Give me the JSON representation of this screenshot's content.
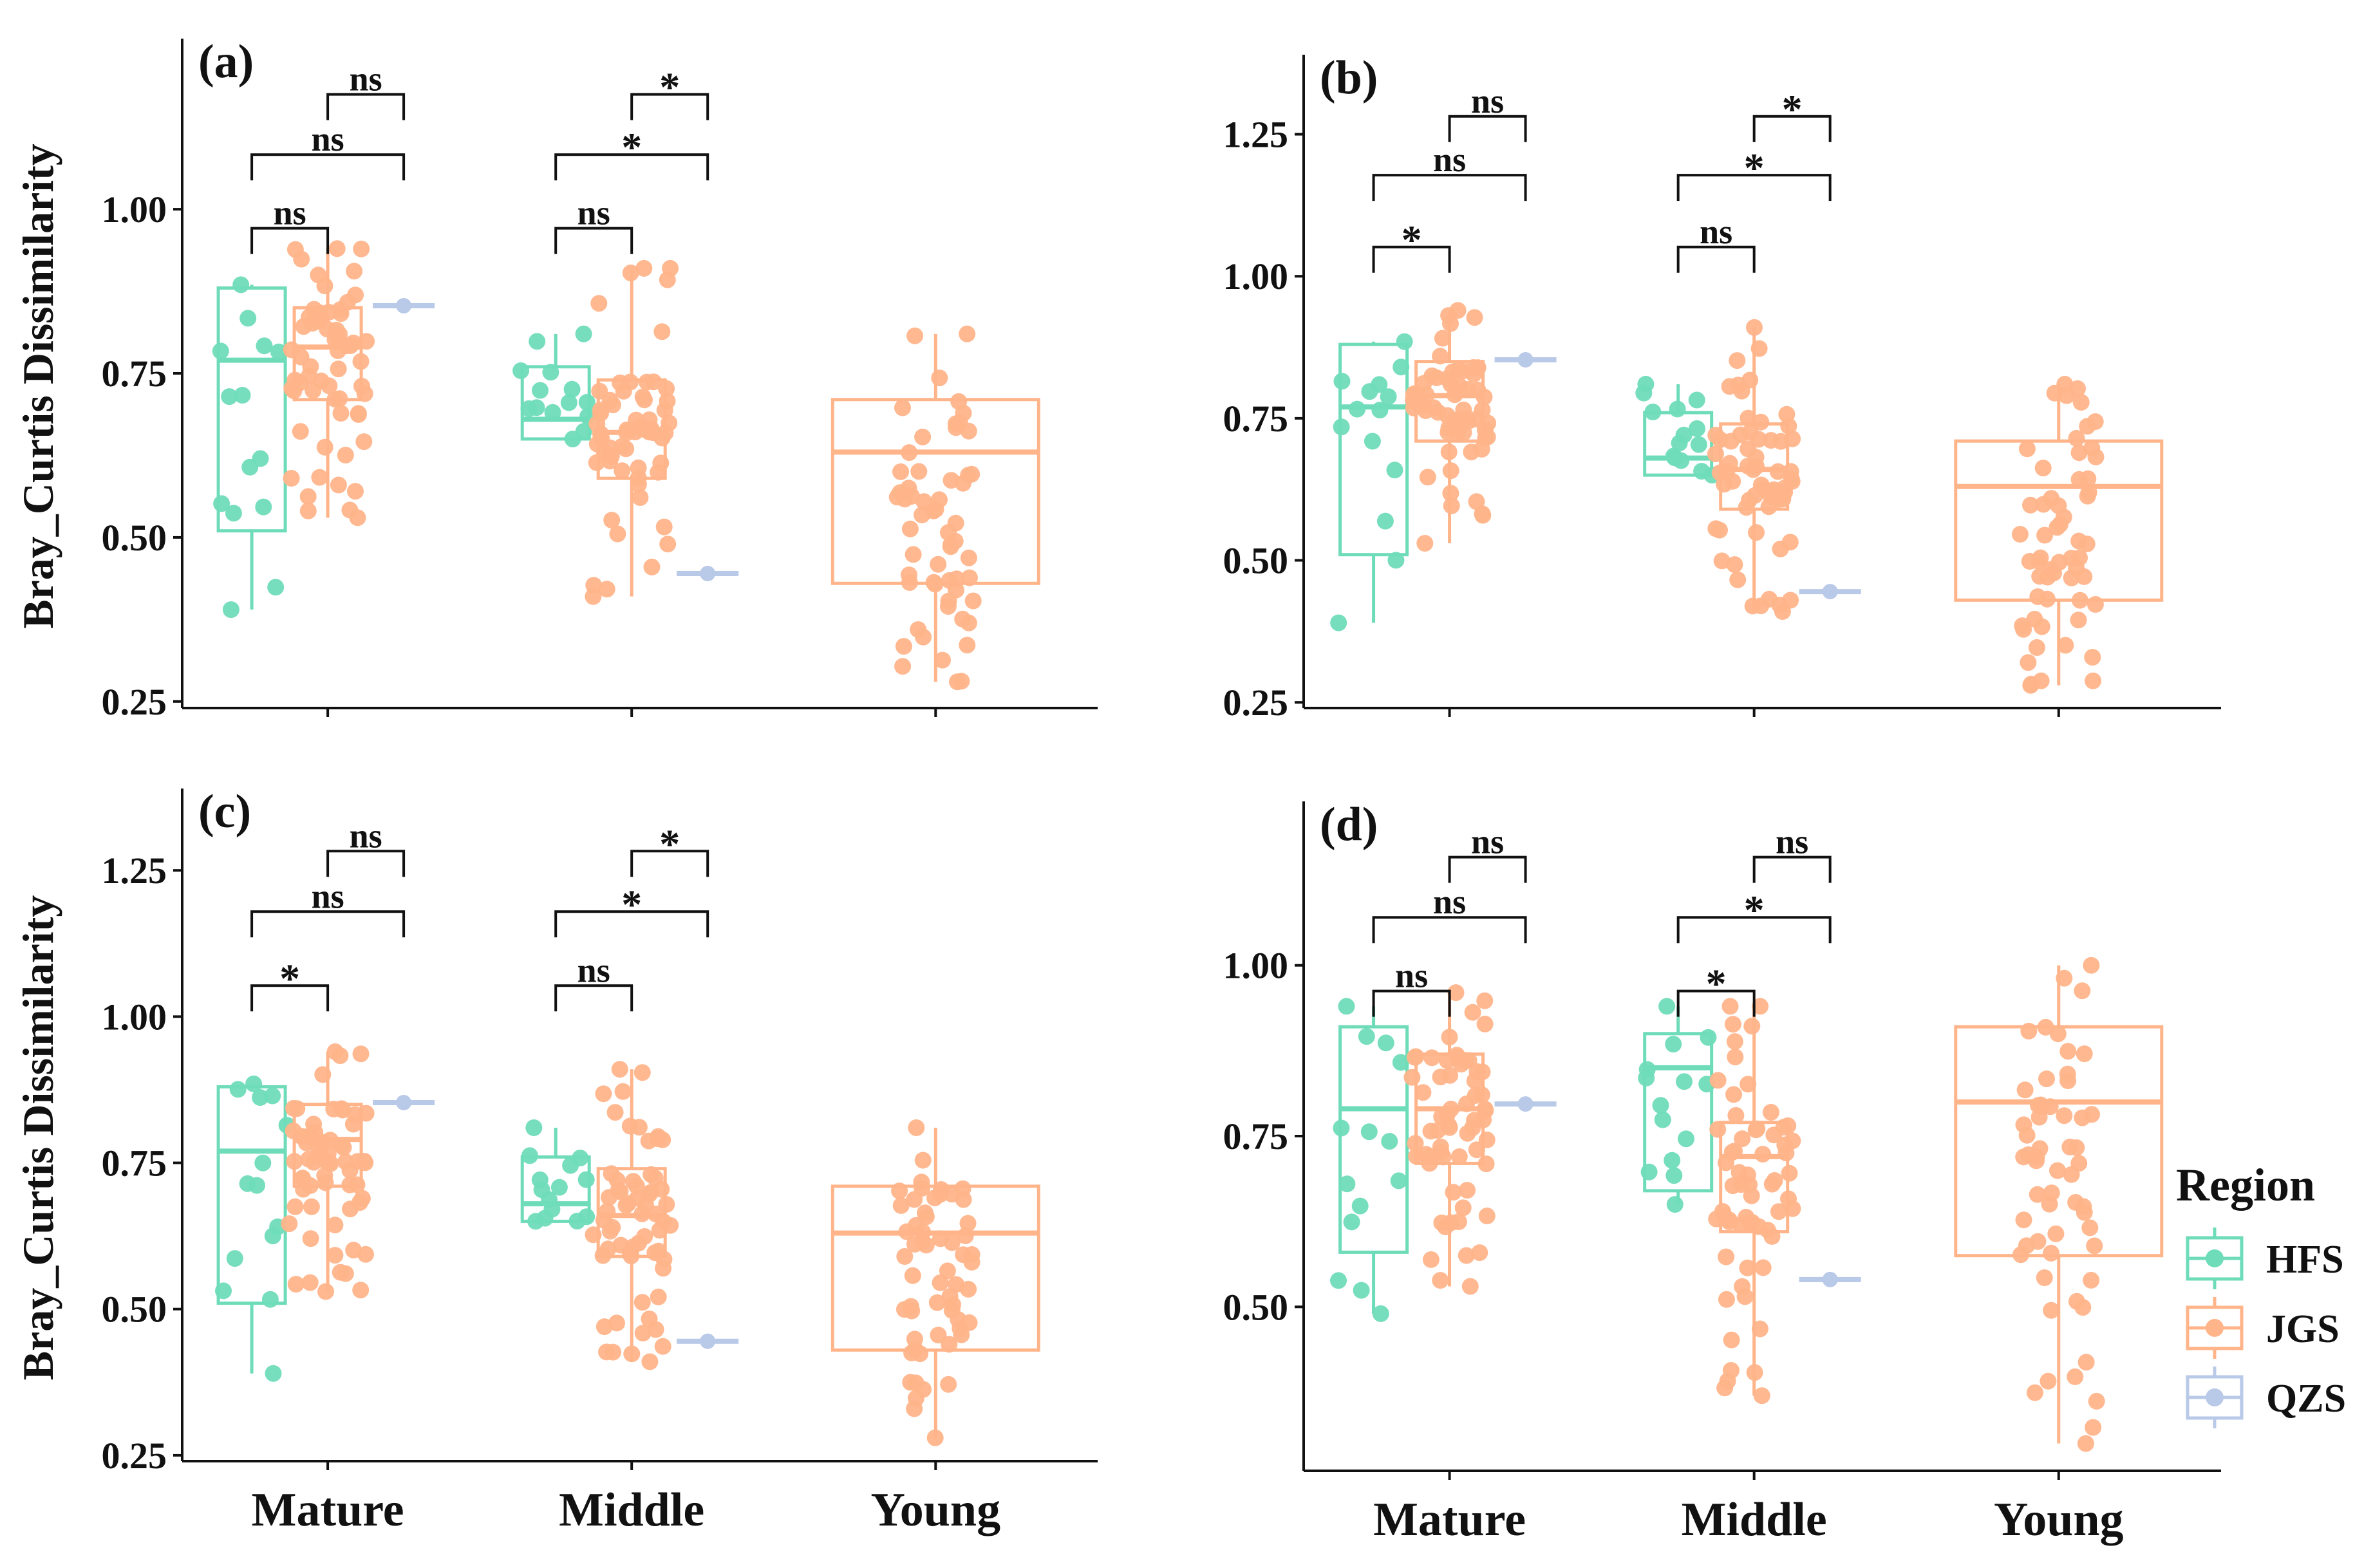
{
  "colors": {
    "HFS": "#6fdcb9",
    "JGS": "#ffb48a",
    "QZS": "#b9c9e8"
  },
  "legend": {
    "title": "Region",
    "items": [
      "HFS",
      "JGS",
      "QZS"
    ]
  },
  "y_axis_label": "Bray_Curtis Dissimilarity",
  "chart_data": [
    {
      "type": "box",
      "panel": "(a)",
      "ylabel": "Bray_Curtis Dissimilarity",
      "ylim": [
        0.24,
        1.26
      ],
      "yticks": [
        0.25,
        0.5,
        0.75,
        1.0
      ],
      "ytick_labels": [
        "0.25",
        "0.50",
        "0.75",
        "1.00"
      ],
      "categories": [],
      "series": [
        {
          "group": "Mature",
          "region": "HFS",
          "q1": 0.51,
          "median": 0.77,
          "q3": 0.88,
          "lower": 0.39,
          "upper": 0.885
        },
        {
          "group": "Mature",
          "region": "JGS",
          "q1": 0.71,
          "median": 0.79,
          "q3": 0.85,
          "lower": 0.53,
          "upper": 0.94
        },
        {
          "group": "Mature",
          "region": "QZS",
          "q1": 0.853,
          "median": 0.853,
          "q3": 0.853,
          "lower": 0.853,
          "upper": 0.853
        },
        {
          "group": "Middle",
          "region": "HFS",
          "q1": 0.65,
          "median": 0.68,
          "q3": 0.76,
          "lower": 0.65,
          "upper": 0.81
        },
        {
          "group": "Middle",
          "region": "JGS",
          "q1": 0.59,
          "median": 0.66,
          "q3": 0.74,
          "lower": 0.41,
          "upper": 0.91
        },
        {
          "group": "Middle",
          "region": "QZS",
          "q1": 0.445,
          "median": 0.445,
          "q3": 0.445,
          "lower": 0.445,
          "upper": 0.445
        },
        {
          "group": "Young",
          "region": "JGS",
          "q1": 0.43,
          "median": 0.63,
          "q3": 0.71,
          "lower": 0.28,
          "upper": 0.81
        }
      ],
      "significance": [
        {
          "group": "Mature",
          "pair": [
            "JGS",
            "QZS"
          ],
          "label": "ns"
        },
        {
          "group": "Mature",
          "pair": [
            "HFS",
            "QZS"
          ],
          "label": "ns"
        },
        {
          "group": "Mature",
          "pair": [
            "HFS",
            "JGS"
          ],
          "label": "ns"
        },
        {
          "group": "Middle",
          "pair": [
            "JGS",
            "QZS"
          ],
          "label": "*"
        },
        {
          "group": "Middle",
          "pair": [
            "HFS",
            "QZS"
          ],
          "label": "*"
        },
        {
          "group": "Middle",
          "pair": [
            "HFS",
            "JGS"
          ],
          "label": "ns"
        }
      ]
    },
    {
      "type": "box",
      "panel": "(b)",
      "ylabel": "",
      "ylim": [
        0.24,
        1.39
      ],
      "yticks": [
        0.25,
        0.5,
        0.75,
        1.0,
        1.25
      ],
      "ytick_labels": [
        "0.25",
        "0.50",
        "0.75",
        "1.00",
        "1.25"
      ],
      "categories": [],
      "series": [
        {
          "group": "Mature",
          "region": "HFS",
          "q1": 0.51,
          "median": 0.77,
          "q3": 0.88,
          "lower": 0.39,
          "upper": 0.885
        },
        {
          "group": "Mature",
          "region": "JGS",
          "q1": 0.71,
          "median": 0.79,
          "q3": 0.85,
          "lower": 0.53,
          "upper": 0.94
        },
        {
          "group": "Mature",
          "region": "QZS",
          "q1": 0.853,
          "median": 0.853,
          "q3": 0.853,
          "lower": 0.853,
          "upper": 0.853
        },
        {
          "group": "Middle",
          "region": "HFS",
          "q1": 0.65,
          "median": 0.68,
          "q3": 0.76,
          "lower": 0.65,
          "upper": 0.81
        },
        {
          "group": "Middle",
          "region": "JGS",
          "q1": 0.59,
          "median": 0.66,
          "q3": 0.74,
          "lower": 0.41,
          "upper": 0.91
        },
        {
          "group": "Middle",
          "region": "QZS",
          "q1": 0.445,
          "median": 0.445,
          "q3": 0.445,
          "lower": 0.445,
          "upper": 0.445
        },
        {
          "group": "Young",
          "region": "JGS",
          "q1": 0.43,
          "median": 0.63,
          "q3": 0.71,
          "lower": 0.28,
          "upper": 0.81
        }
      ],
      "significance": [
        {
          "group": "Mature",
          "pair": [
            "JGS",
            "QZS"
          ],
          "label": "ns"
        },
        {
          "group": "Mature",
          "pair": [
            "HFS",
            "QZS"
          ],
          "label": "ns"
        },
        {
          "group": "Mature",
          "pair": [
            "HFS",
            "JGS"
          ],
          "label": "*"
        },
        {
          "group": "Middle",
          "pair": [
            "JGS",
            "QZS"
          ],
          "label": "*"
        },
        {
          "group": "Middle",
          "pair": [
            "HFS",
            "QZS"
          ],
          "label": "*"
        },
        {
          "group": "Middle",
          "pair": [
            "HFS",
            "JGS"
          ],
          "label": "ns"
        }
      ]
    },
    {
      "type": "box",
      "panel": "(c)",
      "ylabel": "Bray_Curtis Dissimilarity",
      "ylim": [
        0.24,
        1.39
      ],
      "yticks": [
        0.25,
        0.5,
        0.75,
        1.0,
        1.25
      ],
      "ytick_labels": [
        "0.25",
        "0.50",
        "0.75",
        "1.00",
        "1.25"
      ],
      "categories": [
        "Mature",
        "Middle",
        "Young"
      ],
      "series": [
        {
          "group": "Mature",
          "region": "HFS",
          "q1": 0.51,
          "median": 0.77,
          "q3": 0.88,
          "lower": 0.39,
          "upper": 0.885
        },
        {
          "group": "Mature",
          "region": "JGS",
          "q1": 0.71,
          "median": 0.79,
          "q3": 0.85,
          "lower": 0.53,
          "upper": 0.94
        },
        {
          "group": "Mature",
          "region": "QZS",
          "q1": 0.853,
          "median": 0.853,
          "q3": 0.853,
          "lower": 0.853,
          "upper": 0.853
        },
        {
          "group": "Middle",
          "region": "HFS",
          "q1": 0.65,
          "median": 0.68,
          "q3": 0.76,
          "lower": 0.65,
          "upper": 0.81
        },
        {
          "group": "Middle",
          "region": "JGS",
          "q1": 0.59,
          "median": 0.66,
          "q3": 0.74,
          "lower": 0.41,
          "upper": 0.91
        },
        {
          "group": "Middle",
          "region": "QZS",
          "q1": 0.445,
          "median": 0.445,
          "q3": 0.445,
          "lower": 0.445,
          "upper": 0.445
        },
        {
          "group": "Young",
          "region": "JGS",
          "q1": 0.43,
          "median": 0.63,
          "q3": 0.71,
          "lower": 0.28,
          "upper": 0.81
        }
      ],
      "significance": [
        {
          "group": "Mature",
          "pair": [
            "JGS",
            "QZS"
          ],
          "label": "ns"
        },
        {
          "group": "Mature",
          "pair": [
            "HFS",
            "QZS"
          ],
          "label": "ns"
        },
        {
          "group": "Mature",
          "pair": [
            "HFS",
            "JGS"
          ],
          "label": "*"
        },
        {
          "group": "Middle",
          "pair": [
            "JGS",
            "QZS"
          ],
          "label": "*"
        },
        {
          "group": "Middle",
          "pair": [
            "HFS",
            "QZS"
          ],
          "label": "*"
        },
        {
          "group": "Middle",
          "pair": [
            "HFS",
            "JGS"
          ],
          "label": "ns"
        }
      ]
    },
    {
      "type": "box",
      "panel": "(d)",
      "ylabel": "",
      "ylim": [
        0.26,
        1.24
      ],
      "yticks": [
        0.5,
        0.75,
        1.0
      ],
      "ytick_labels": [
        "0.50",
        "0.75",
        "1.00"
      ],
      "categories": [
        "Mature",
        "Middle",
        "Young"
      ],
      "series": [
        {
          "group": "Mature",
          "region": "HFS",
          "q1": 0.58,
          "median": 0.79,
          "q3": 0.91,
          "lower": 0.49,
          "upper": 0.94
        },
        {
          "group": "Mature",
          "region": "JGS",
          "q1": 0.71,
          "median": 0.79,
          "q3": 0.87,
          "lower": 0.53,
          "upper": 0.96
        },
        {
          "group": "Mature",
          "region": "QZS",
          "q1": 0.797,
          "median": 0.797,
          "q3": 0.797,
          "lower": 0.797,
          "upper": 0.797
        },
        {
          "group": "Middle",
          "region": "HFS",
          "q1": 0.67,
          "median": 0.85,
          "q3": 0.9,
          "lower": 0.65,
          "upper": 0.94
        },
        {
          "group": "Middle",
          "region": "JGS",
          "q1": 0.61,
          "median": 0.72,
          "q3": 0.77,
          "lower": 0.37,
          "upper": 0.94
        },
        {
          "group": "Middle",
          "region": "QZS",
          "q1": 0.54,
          "median": 0.54,
          "q3": 0.54,
          "lower": 0.54,
          "upper": 0.54
        },
        {
          "group": "Young",
          "region": "JGS",
          "q1": 0.575,
          "median": 0.8,
          "q3": 0.91,
          "lower": 0.3,
          "upper": 1.0
        }
      ],
      "significance": [
        {
          "group": "Mature",
          "pair": [
            "JGS",
            "QZS"
          ],
          "label": "ns"
        },
        {
          "group": "Mature",
          "pair": [
            "HFS",
            "QZS"
          ],
          "label": "ns"
        },
        {
          "group": "Mature",
          "pair": [
            "HFS",
            "JGS"
          ],
          "label": "ns"
        },
        {
          "group": "Middle",
          "pair": [
            "JGS",
            "QZS"
          ],
          "label": "ns"
        },
        {
          "group": "Middle",
          "pair": [
            "HFS",
            "QZS"
          ],
          "label": "*"
        },
        {
          "group": "Middle",
          "pair": [
            "HFS",
            "JGS"
          ],
          "label": "*"
        }
      ]
    }
  ]
}
